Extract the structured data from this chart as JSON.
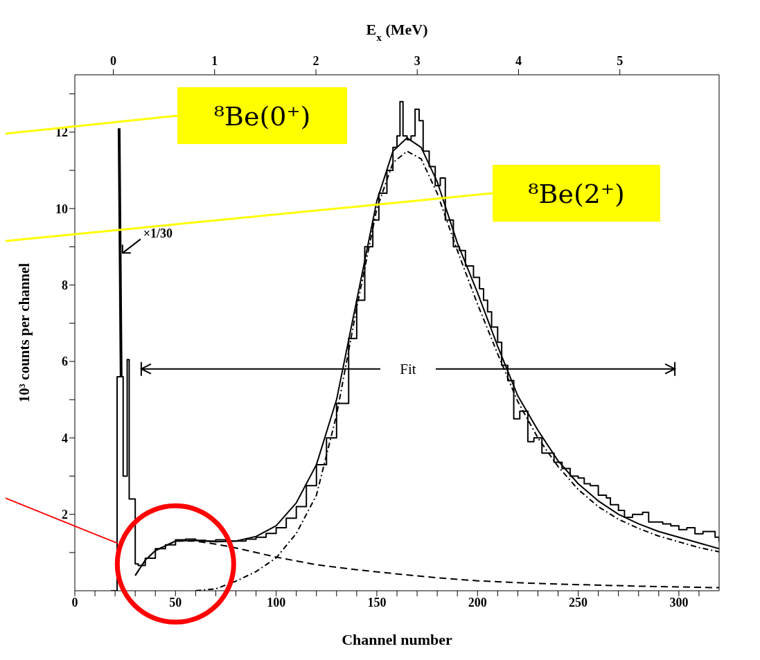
{
  "chart_data": {
    "type": "step",
    "xlabel": "Channel number",
    "ylabel": "10³ counts per channel",
    "x2label": "E$_{x}$ (MeV)",
    "xlim": [
      0,
      320
    ],
    "xticks": [
      0,
      {
        "value": 10,
        "label": null
      },
      {
        "value": 20,
        "label": null
      },
      {
        "value": 30,
        "label": null
      },
      {
        "value": 40,
        "label": null
      },
      50,
      {
        "value": 60,
        "label": null
      },
      {
        "value": 70,
        "label": null
      },
      {
        "value": 80,
        "label": null
      },
      {
        "value": 90,
        "label": null
      },
      100,
      {
        "value": 110,
        "label": null
      },
      {
        "value": 120,
        "label": null
      },
      {
        "value": 130,
        "label": null
      },
      {
        "value": 140,
        "label": null
      },
      150,
      {
        "value": 160,
        "label": null
      },
      {
        "value": 170,
        "label": null
      },
      {
        "value": 180,
        "label": null
      },
      {
        "value": 190,
        "label": null
      },
      200,
      {
        "value": 210,
        "label": null
      },
      {
        "value": 220,
        "label": null
      },
      {
        "value": 230,
        "label": null
      },
      {
        "value": 240,
        "label": null
      },
      250,
      {
        "value": 260,
        "label": null
      },
      {
        "value": 270,
        "label": null
      },
      {
        "value": 280,
        "label": null
      },
      {
        "value": 290,
        "label": null
      },
      300,
      {
        "value": 310,
        "label": null
      }
    ],
    "x2lim": [
      -0.38,
      5.98
    ],
    "x2ticks": [
      0,
      1,
      2,
      3,
      4,
      5
    ],
    "ylim": [
      0,
      13.5
    ],
    "yticks": [
      {
        "value": 1,
        "label": null
      },
      2,
      {
        "value": 3,
        "label": null
      },
      4,
      {
        "value": 5,
        "label": null
      },
      6,
      {
        "value": 7,
        "label": null
      },
      8,
      {
        "value": 9,
        "label": null
      },
      10,
      {
        "value": 11,
        "label": null
      },
      12,
      {
        "value": 13,
        "label": null
      }
    ],
    "grid": false,
    "marker": "none",
    "series": [
      {
        "color": "#000000",
        "line_style": "solid",
        "x": [
          18,
          21,
          23,
          24,
          26,
          27,
          29,
          30,
          31.5,
          35,
          40,
          45,
          50,
          55,
          60,
          65,
          70,
          75,
          80,
          85,
          90,
          95,
          100,
          105,
          110,
          115,
          120,
          125,
          130,
          136,
          140,
          144,
          148,
          151,
          155,
          158,
          160,
          161.5,
          163,
          165,
          167,
          169,
          171,
          173,
          176,
          179,
          181.5,
          184,
          188,
          191,
          194,
          198,
          201,
          203,
          205,
          207,
          210,
          212,
          215,
          218,
          221,
          225,
          228,
          232,
          235,
          238,
          242,
          246,
          250,
          253,
          256,
          260,
          264,
          266,
          270,
          273,
          277,
          282,
          285,
          288,
          292,
          296,
          300,
          304,
          308,
          312,
          316,
          318,
          320
        ],
        "values": [
          0,
          5.6,
          5.6,
          3.0,
          6.05,
          2.4,
          2.4,
          0.7,
          0.66,
          0.85,
          1.1,
          1.2,
          1.33,
          1.35,
          1.32,
          1.3,
          1.33,
          1.3,
          1.3,
          1.35,
          1.4,
          1.5,
          1.65,
          1.9,
          2.2,
          2.75,
          3.3,
          4.0,
          4.9,
          6.6,
          7.6,
          9.0,
          9.7,
          10.4,
          11.0,
          11.6,
          11.9,
          12.8,
          11.9,
          11.8,
          11.9,
          12.6,
          12.3,
          11.5,
          11.1,
          10.6,
          10.8,
          9.7,
          9.0,
          8.9,
          8.5,
          8.2,
          7.9,
          7.6,
          7.3,
          6.9,
          6.5,
          5.9,
          5.5,
          4.5,
          4.7,
          3.9,
          4.0,
          3.6,
          3.6,
          3.36,
          3.2,
          3.0,
          2.95,
          2.8,
          2.75,
          2.5,
          2.43,
          2.25,
          2.1,
          1.92,
          2.0,
          2.05,
          1.8,
          1.8,
          1.75,
          1.7,
          1.6,
          1.65,
          1.49,
          1.55,
          1.55,
          1.4,
          1.28
        ]
      },
      {
        "type": "line",
        "color": "#000000",
        "line_style": "solid",
        "x": [
          22,
          23
        ],
        "values": [
          12.1,
          5.6
        ]
      },
      {
        "type": "line",
        "color": "#000000",
        "line_style": "solid",
        "x": [
          30,
          35,
          40,
          50,
          60,
          70,
          80,
          90,
          100,
          110,
          120,
          130,
          140,
          150,
          158,
          165,
          172,
          180,
          190,
          200,
          210,
          220,
          230,
          240,
          250,
          260,
          270,
          280,
          290,
          300,
          310,
          320
        ],
        "values": [
          0.4,
          0.8,
          1.05,
          1.3,
          1.32,
          1.28,
          1.3,
          1.42,
          1.7,
          2.3,
          3.3,
          5.0,
          7.6,
          10.2,
          11.5,
          11.85,
          11.6,
          10.7,
          9.1,
          7.8,
          6.4,
          5.1,
          4.2,
          3.4,
          2.8,
          2.35,
          2.0,
          1.75,
          1.55,
          1.4,
          1.25,
          1.1
        ]
      },
      {
        "type": "line",
        "color": "#000000",
        "line_style": "dashed",
        "x": [
          30,
          35,
          40,
          50,
          60,
          70,
          80,
          90,
          100,
          120,
          140,
          160,
          180,
          200,
          225,
          250,
          280,
          320
        ],
        "values": [
          0.4,
          0.8,
          1.05,
          1.3,
          1.3,
          1.22,
          1.12,
          1.0,
          0.88,
          0.68,
          0.55,
          0.44,
          0.34,
          0.26,
          0.2,
          0.16,
          0.12,
          0.08
        ]
      },
      {
        "type": "line",
        "color": "#000000",
        "line_style": "dotted",
        "x": [
          60,
          70,
          80,
          90,
          100,
          110,
          120,
          130,
          140,
          150,
          158,
          165,
          172,
          180,
          190,
          200,
          210,
          220,
          230,
          240,
          250,
          260,
          270,
          280,
          290,
          300,
          310,
          320
        ],
        "values": [
          0,
          0.05,
          0.25,
          0.5,
          0.86,
          1.5,
          2.5,
          4.6,
          7.4,
          10.0,
          11.2,
          11.5,
          11.3,
          10.4,
          8.9,
          7.5,
          6.2,
          4.95,
          4.0,
          3.25,
          2.65,
          2.2,
          1.87,
          1.63,
          1.43,
          1.28,
          1.13,
          1.02
        ]
      }
    ],
    "annotations": [
      "⁸Be(0⁺)",
      "⁸Be(2⁺)",
      {
        "text": "×1/30",
        "x": 23,
        "y": 8.8
      },
      "Fit"
    ]
  }
}
